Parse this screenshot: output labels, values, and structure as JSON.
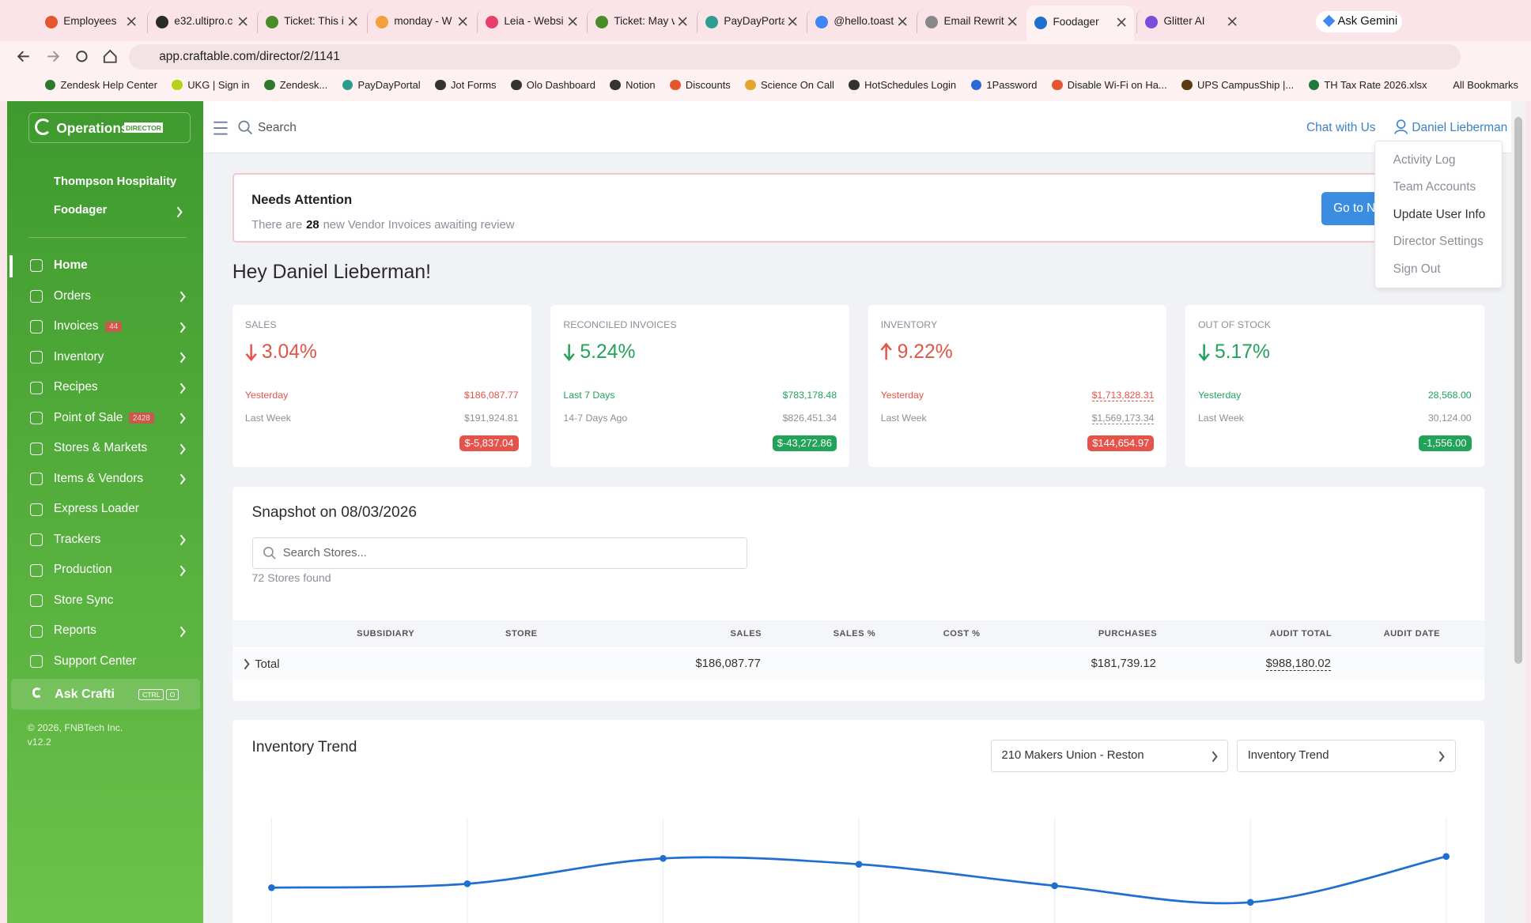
{
  "tabs": [
    "Employees",
    "e32.ultipro.c",
    "Ticket: This i",
    "monday - W",
    "Leia - Websi",
    "Ticket: May v",
    "PayDayPorta",
    "@hello.toast",
    "Email Rewrit",
    "Foodager",
    "Glitter AI"
  ],
  "active_tab": 9,
  "ask_gemini": "Ask Gemini",
  "url": "app.craftable.com/director/2/1141",
  "bookmarks": [
    "Zendesk Help Center",
    "UKG | Sign in",
    "Zendesk...",
    "PayDayPortal",
    "Jot Forms",
    "Olo Dashboard",
    "Notion",
    "Discounts",
    "Science On Call",
    "HotSchedules Login",
    "1Password",
    "Disable Wi-Fi on Ha...",
    "UPS CampusShip |...",
    "TH Tax Rate 2026.xlsx"
  ],
  "all_bookmarks": "All Bookmarks",
  "sidebar": {
    "brand": "Operations",
    "badge": "DIRECTOR",
    "org": "Thompson Hospitality",
    "app": "Foodager",
    "nav": [
      {
        "label": "Home",
        "submenu": false
      },
      {
        "label": "Orders",
        "submenu": true
      },
      {
        "label": "Invoices",
        "submenu": true,
        "count": "44"
      },
      {
        "label": "Inventory",
        "submenu": true
      },
      {
        "label": "Recipes",
        "submenu": true
      },
      {
        "label": "Point of Sale",
        "submenu": true,
        "count": "2428"
      },
      {
        "label": "Stores & Markets",
        "submenu": true
      },
      {
        "label": "Items & Vendors",
        "submenu": true
      },
      {
        "label": "Express Loader",
        "submenu": false
      },
      {
        "label": "Trackers",
        "submenu": true
      },
      {
        "label": "Production",
        "submenu": true
      },
      {
        "label": "Store Sync",
        "submenu": false
      },
      {
        "label": "Reports",
        "submenu": true
      },
      {
        "label": "Support Center",
        "submenu": false
      }
    ],
    "ask": "Ask Crafti",
    "keys": [
      "CTRL",
      "O"
    ],
    "footer": [
      "© 2026, FNBTech Inc.",
      "v12.2"
    ]
  },
  "header": {
    "search": "Search",
    "chat": "Chat with Us",
    "user": "Daniel Lieberman",
    "menu": [
      "Activity Log",
      "Team Accounts",
      "Update User Info",
      "Director Settings",
      "Sign Out"
    ]
  },
  "alert": {
    "title": "Needs Attention",
    "text_before": "There are",
    "count": "28",
    "text_after": "new Vendor Invoices awaiting review",
    "button": "Go to N"
  },
  "greeting": "Hey Daniel Lieberman!",
  "cards": [
    {
      "title": "SALES",
      "change": "3.04%",
      "direction": "down",
      "tone": "bad",
      "rows": [
        [
          "Yesterday",
          "$186,087.77"
        ],
        [
          "Last Week",
          "$191,924.81"
        ]
      ],
      "diff": "$-5,837.04"
    },
    {
      "title": "RECONCILED INVOICES",
      "change": "5.24%",
      "direction": "down",
      "tone": "good",
      "rows": [
        [
          "Last 7 Days",
          "$783,178.48"
        ],
        [
          "14-7 Days Ago",
          "$826,451.34"
        ]
      ],
      "diff": "$-43,272.86"
    },
    {
      "title": "INVENTORY",
      "change": "9.22%",
      "direction": "up",
      "tone": "bad",
      "rows": [
        [
          "Yesterday",
          "$1,713,828.31"
        ],
        [
          "Last Week",
          "$1,569,173.34"
        ]
      ],
      "diff": "$144,654.97"
    },
    {
      "title": "OUT OF STOCK",
      "change": "5.17%",
      "direction": "down",
      "tone": "good",
      "rows": [
        [
          "Yesterday",
          "28,568.00"
        ],
        [
          "Last Week",
          "30,124.00"
        ]
      ],
      "diff": "-1,556.00"
    }
  ],
  "snapshot": {
    "title": "Snapshot on 08/03/2026",
    "search": "Search Stores...",
    "found": "72 Stores found",
    "columns": [
      "SUBSIDIARY",
      "STORE",
      "SALES",
      "SALES %",
      "COST %",
      "PURCHASES",
      "AUDIT TOTAL",
      "AUDIT DATE"
    ],
    "total": {
      "label": "Total",
      "sales": "$186,087.77",
      "purchases": "$181,739.12",
      "audit_total": "$988,180.02"
    }
  },
  "trend": {
    "title": "Inventory Trend",
    "store": "210 Makers Union - Reston",
    "metric": "Inventory Trend",
    "values": [
      10,
      11.6,
      22,
      19.6,
      10.8,
      4,
      22.8
    ],
    "ylim": [
      0,
      30
    ],
    "color": "#1f6fd1"
  }
}
